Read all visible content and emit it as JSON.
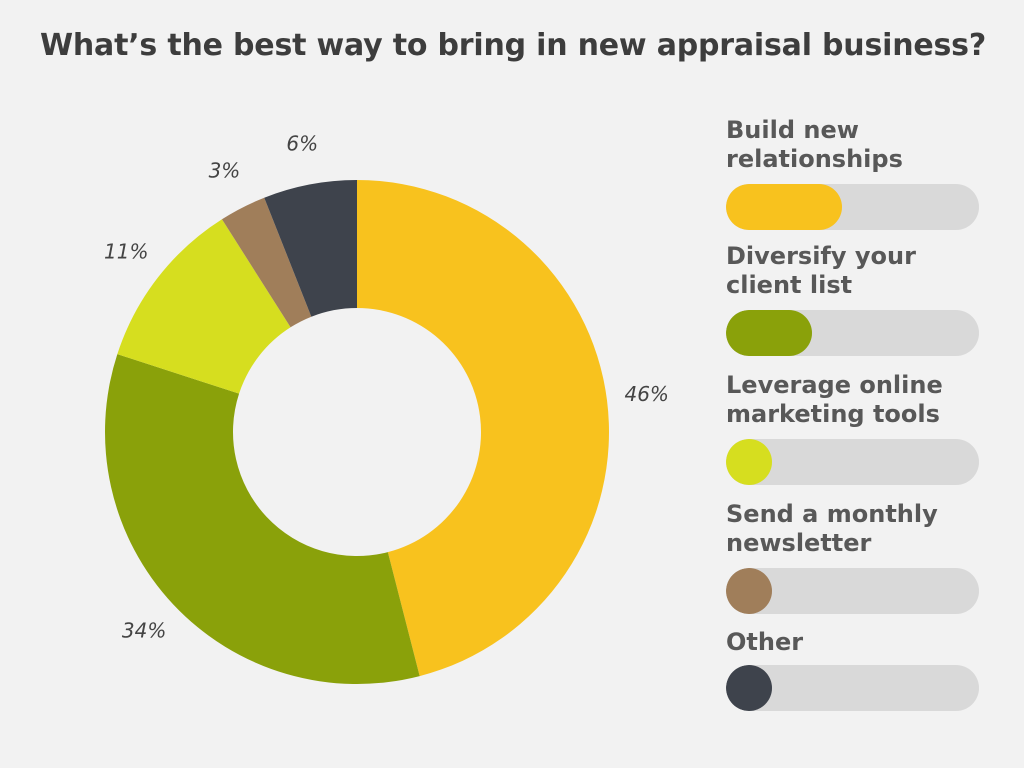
{
  "chart_data": {
    "type": "pie",
    "variant": "donut",
    "title": "What’s the best way to bring in new appraisal business?",
    "categories": [
      "Build new relationships",
      "Diversify your client list",
      "Leverage online marketing tools",
      "Send a monthly newsletter",
      "Other"
    ],
    "values": [
      46,
      34,
      11,
      3,
      6
    ],
    "labels": [
      "46%",
      "34%",
      "11%",
      "3%",
      "6%"
    ],
    "colors": [
      "#f8c21e",
      "#8aa10a",
      "#d6de1f",
      "#a07e5a",
      "#3e434c"
    ],
    "legend_placement": "right",
    "legend_style": "progress-bars",
    "track_color": "#d9d9d9"
  }
}
